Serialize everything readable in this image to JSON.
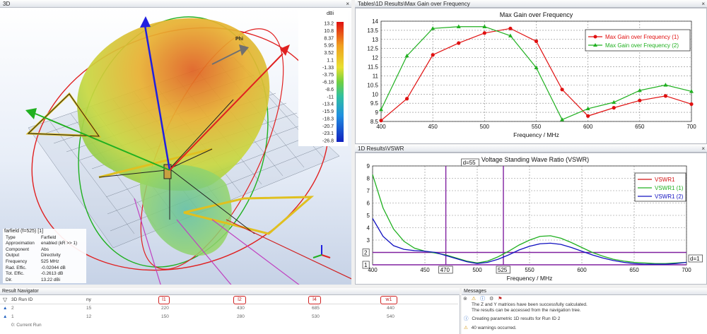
{
  "pane_3d": {
    "title": "3D",
    "close": "×"
  },
  "legend": {
    "unit": "dBi",
    "labels": [
      "13.2",
      "10.8",
      "8.37",
      "5.95",
      "3.52",
      "1.1",
      "-1.33",
      "-3.75",
      "-6.18",
      "-8.6",
      "-11",
      "-13.4",
      "-15.9",
      "-18.3",
      "-20.7",
      "-23.1",
      "-26.8"
    ],
    "phi_label": "Phi"
  },
  "farfield": {
    "title": "farfield (f=525) [1]",
    "rows": [
      {
        "k": "Type",
        "v": "Farfield"
      },
      {
        "k": "Approximation",
        "v": "enabled (kR >> 1)"
      },
      {
        "k": "Component",
        "v": "Abs"
      },
      {
        "k": "Output",
        "v": "Directivity"
      },
      {
        "k": "Frequency",
        "v": "525 MHz"
      },
      {
        "k": "Rad. Effic.",
        "v": "-0.02044 dB"
      },
      {
        "k": "Tot. Effic.",
        "v": "-0.2613 dB"
      },
      {
        "k": "Dir.",
        "v": "13.22 dBi"
      }
    ]
  },
  "pane_gain": {
    "title": "Tables\\1D Results\\Max Gain over Frequency",
    "close": "×"
  },
  "pane_vswr": {
    "title": "1D Results\\VSWR",
    "close": "×"
  },
  "chart_data": [
    {
      "type": "line",
      "title": "Max Gain over Frequency",
      "xlabel": "Frequency / MHz",
      "ylabel": "",
      "xlim": [
        400,
        700
      ],
      "ylim": [
        8.5,
        14
      ],
      "xticks": [
        400,
        450,
        500,
        550,
        600,
        650,
        700
      ],
      "yticks": [
        8.5,
        9,
        9.5,
        10,
        10.5,
        11,
        11.5,
        12,
        12.5,
        13,
        13.5,
        14
      ],
      "legend_position": "top-right",
      "series": [
        {
          "name": "Max Gain over Frequency (1)",
          "color": "#e01010",
          "marker": "circle",
          "x": [
            400,
            425,
            450,
            475,
            500,
            525,
            550,
            575,
            600,
            625,
            650,
            675,
            700
          ],
          "values": [
            8.55,
            9.75,
            12.15,
            12.8,
            13.35,
            13.6,
            12.9,
            10.25,
            8.8,
            9.25,
            9.65,
            9.9,
            9.45
          ]
        },
        {
          "name": "Max Gain over Frequency (2)",
          "color": "#20b020",
          "marker": "triangle",
          "x": [
            400,
            425,
            450,
            475,
            500,
            525,
            550,
            575,
            600,
            625,
            650,
            675,
            700
          ],
          "values": [
            9.15,
            12.1,
            13.6,
            13.7,
            13.7,
            13.2,
            11.45,
            8.6,
            9.2,
            9.55,
            10.2,
            10.5,
            10.15
          ]
        }
      ]
    },
    {
      "type": "line",
      "title": "Voltage Standing Wave Ratio (VSWR)",
      "xlabel": "Frequency / MHz",
      "ylabel": "",
      "xlim": [
        400,
        700
      ],
      "ylim": [
        1,
        9
      ],
      "xticks": [
        400,
        450,
        500,
        550,
        600,
        650,
        700
      ],
      "yticks": [
        1,
        2,
        3,
        4,
        5,
        6,
        7,
        8,
        9
      ],
      "legend_position": "top-right",
      "markers": {
        "vertical": [
          470,
          525
        ],
        "horizontal": [
          1,
          2
        ],
        "labels": [
          "d=55",
          "470",
          "525",
          "2",
          "1",
          "d=1"
        ]
      },
      "series": [
        {
          "name": "VSWR1",
          "color": "#d01010",
          "x": [],
          "values": []
        },
        {
          "name": "VSWR1 (1)",
          "color": "#20b020",
          "x": [
            400,
            410,
            420,
            430,
            440,
            450,
            460,
            470,
            480,
            490,
            500,
            510,
            520,
            530,
            540,
            550,
            560,
            570,
            580,
            590,
            600,
            610,
            620,
            630,
            640,
            650,
            660,
            670,
            680,
            690,
            700
          ],
          "values": [
            8.3,
            5.6,
            3.9,
            2.9,
            2.35,
            2.1,
            1.95,
            1.8,
            1.55,
            1.3,
            1.15,
            1.3,
            1.65,
            2.1,
            2.6,
            3.0,
            3.3,
            3.35,
            3.15,
            2.8,
            2.4,
            2.0,
            1.7,
            1.45,
            1.3,
            1.2,
            1.15,
            1.1,
            1.1,
            1.15,
            1.2
          ]
        },
        {
          "name": "VSWR1 (2)",
          "color": "#1010c0",
          "x": [
            400,
            410,
            420,
            430,
            440,
            450,
            460,
            470,
            480,
            490,
            500,
            510,
            520,
            530,
            540,
            550,
            560,
            570,
            580,
            590,
            600,
            610,
            620,
            630,
            640,
            650,
            660,
            670,
            680,
            690,
            700
          ],
          "values": [
            4.75,
            3.3,
            2.55,
            2.25,
            2.15,
            2.1,
            2.0,
            1.75,
            1.5,
            1.25,
            1.1,
            1.2,
            1.45,
            1.8,
            2.2,
            2.5,
            2.7,
            2.75,
            2.65,
            2.4,
            2.1,
            1.8,
            1.55,
            1.35,
            1.2,
            1.1,
            1.05,
            1.05,
            1.05,
            1.1,
            1.2
          ]
        }
      ]
    }
  ],
  "navigator": {
    "title": "Result Navigator",
    "col_id": "3D Run ID",
    "col_ny": "ny",
    "cols": [
      "l1",
      "l2",
      "l4",
      "w1"
    ],
    "rows": [
      {
        "id": "2",
        "ny": "15",
        "vals": [
          "220",
          "430",
          "685",
          "440"
        ]
      },
      {
        "id": "1",
        "ny": "12",
        "vals": [
          "150",
          "280",
          "530",
          "540"
        ]
      },
      {
        "id": "0: Current Run",
        "ny": "",
        "vals": [
          "",
          "",
          "",
          ""
        ]
      }
    ]
  },
  "messages": {
    "title": "Messages",
    "items": [
      {
        "icon": "info",
        "text": "The Z and Y matrices have been successfully calculated."
      },
      {
        "icon": "",
        "text": "The results can be accessed from the navigation tree."
      },
      {
        "icon": "info",
        "text": "Creating parametric 1D results for Run ID 2"
      },
      {
        "icon": "warning",
        "text": "40 warnings occurred."
      }
    ]
  }
}
